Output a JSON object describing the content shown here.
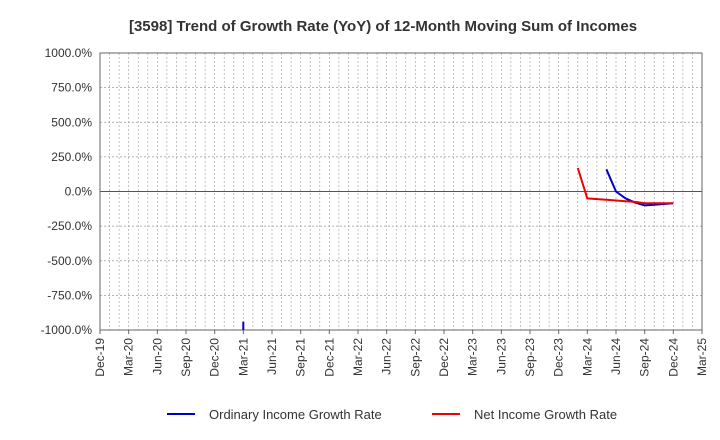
{
  "chart_data": {
    "type": "line",
    "title": "[3598]  Trend of Growth Rate (YoY) of 12-Month Moving Sum of Incomes",
    "xlabel": "",
    "ylabel": "",
    "ylim": [
      -1000,
      1000
    ],
    "y_ticks": [
      "1000.0%",
      "750.0%",
      "500.0%",
      "250.0%",
      "0.0%",
      "-250.0%",
      "-500.0%",
      "-750.0%",
      "-1000.0%"
    ],
    "y_tick_values": [
      1000,
      750,
      500,
      250,
      0,
      -250,
      -500,
      -750,
      -1000
    ],
    "x_range": [
      "2019-12",
      "2025-03"
    ],
    "x_ticks": [
      "Dec-19",
      "Mar-20",
      "Jun-20",
      "Sep-20",
      "Dec-20",
      "Mar-21",
      "Jun-21",
      "Sep-21",
      "Dec-21",
      "Mar-22",
      "Jun-22",
      "Sep-22",
      "Dec-22",
      "Mar-23",
      "Jun-23",
      "Sep-23",
      "Dec-23",
      "Mar-24",
      "Jun-24",
      "Sep-24",
      "Dec-24",
      "Mar-25"
    ],
    "grid": true,
    "legend_position": "bottom",
    "series": [
      {
        "name": "Ordinary Income Growth Rate",
        "color": "#0000cc",
        "segments": [
          {
            "x": [
              "2021-03",
              "2021-03"
            ],
            "y": [
              -940,
              -1000
            ]
          },
          {
            "x": [
              "2024-05",
              "2024-06",
              "2024-07",
              "2024-08",
              "2024-09",
              "2024-10",
              "2024-11",
              "2024-12"
            ],
            "y": [
              160,
              0,
              -50,
              -80,
              -100,
              -95,
              -90,
              -85
            ]
          }
        ]
      },
      {
        "name": "Net Income Growth Rate",
        "color": "#ee0000",
        "segments": [
          {
            "x": [
              "2024-02",
              "2024-03",
              "2024-04",
              "2024-05",
              "2024-06",
              "2024-07",
              "2024-08",
              "2024-09",
              "2024-10",
              "2024-11",
              "2024-12"
            ],
            "y": [
              170,
              -50,
              -55,
              -60,
              -65,
              -70,
              -75,
              -85,
              -85,
              -85,
              -85
            ]
          }
        ]
      }
    ]
  }
}
